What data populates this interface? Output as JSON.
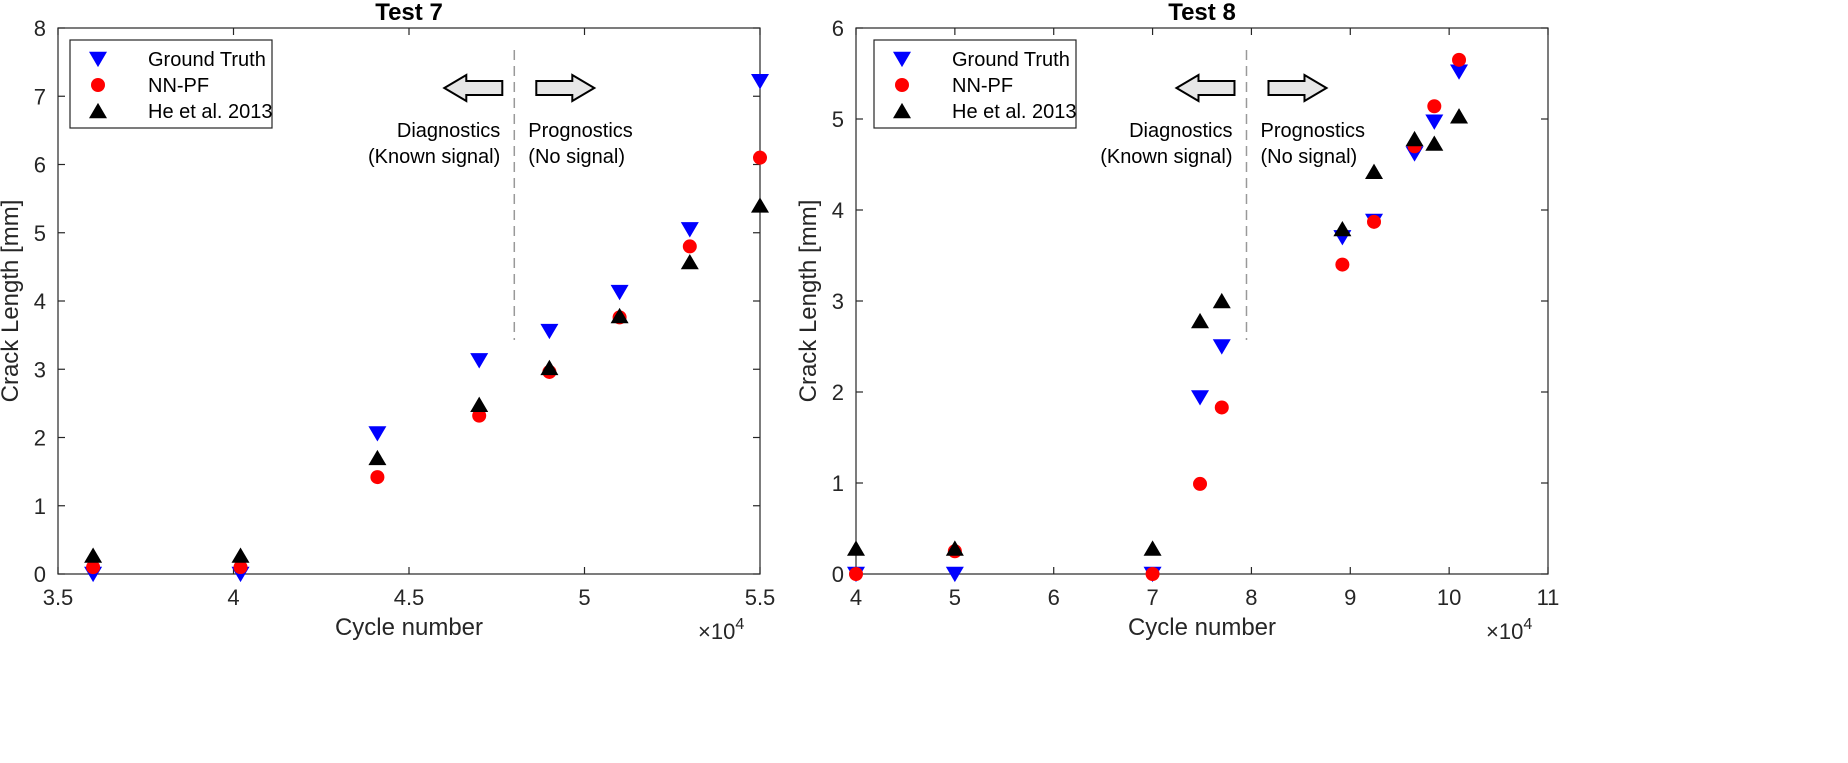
{
  "chart_data": [
    {
      "type": "scatter",
      "title": "Test 7",
      "xlabel": "Cycle number",
      "ylabel": "Crack Length [mm]",
      "x_multiplier": "×10",
      "x_multiplier_exp": "4",
      "xlim": [
        3.5,
        5.5
      ],
      "ylim": [
        0,
        8
      ],
      "xticks": [
        3.5,
        4,
        4.5,
        5,
        5.5
      ],
      "xtick_labels": [
        "3.5",
        "4",
        "4.5",
        "5",
        "5.5"
      ],
      "yticks": [
        0,
        1,
        2,
        3,
        4,
        5,
        6,
        7,
        8
      ],
      "ytick_labels": [
        "0",
        "1",
        "2",
        "3",
        "4",
        "5",
        "6",
        "7",
        "8"
      ],
      "divider_x": 4.8,
      "legend_position": "top-left",
      "annotations": {
        "left_line1": "Diagnostics",
        "left_line2": "(Known signal)",
        "right_line1": "Prognostics",
        "right_line2": "(No signal)"
      },
      "series": [
        {
          "name": "Ground Truth",
          "marker": "triangle-down",
          "color": "#0000ff",
          "x": [
            3.6,
            4.02,
            4.41,
            4.7,
            4.9,
            5.1,
            5.3,
            5.5
          ],
          "y": [
            0.0,
            0.0,
            2.06,
            3.13,
            3.56,
            4.13,
            5.05,
            7.22
          ]
        },
        {
          "name": "NN-PF",
          "marker": "circle",
          "color": "#ff0000",
          "x": [
            3.6,
            4.02,
            4.41,
            4.7,
            4.9,
            5.1,
            5.3,
            5.5
          ],
          "y": [
            0.1,
            0.1,
            1.42,
            2.32,
            2.96,
            3.76,
            4.8,
            6.1
          ]
        },
        {
          "name": "He et al. 2013",
          "marker": "triangle-up",
          "color": "#000000",
          "x": [
            3.6,
            4.02,
            4.41,
            4.7,
            4.9,
            5.1,
            5.3,
            5.5
          ],
          "y": [
            0.27,
            0.27,
            1.7,
            2.48,
            3.02,
            3.78,
            4.57,
            5.4
          ]
        }
      ]
    },
    {
      "type": "scatter",
      "title": "Test 8",
      "xlabel": "Cycle number",
      "ylabel": "Crack Length [mm]",
      "x_multiplier": "×10",
      "x_multiplier_exp": "4",
      "xlim": [
        4,
        11
      ],
      "ylim": [
        0,
        6
      ],
      "xticks": [
        4,
        5,
        6,
        7,
        8,
        9,
        10,
        11
      ],
      "xtick_labels": [
        "4",
        "5",
        "6",
        "7",
        "8",
        "9",
        "10",
        "11"
      ],
      "yticks": [
        0,
        1,
        2,
        3,
        4,
        5,
        6
      ],
      "ytick_labels": [
        "0",
        "1",
        "2",
        "3",
        "4",
        "5",
        "6"
      ],
      "divider_x": 7.95,
      "legend_position": "top-left",
      "annotations": {
        "left_line1": "Diagnostics",
        "left_line2": "(Known signal)",
        "right_line1": "Prognostics",
        "right_line2": "(No signal)"
      },
      "series": [
        {
          "name": "Ground Truth",
          "marker": "triangle-down",
          "color": "#0000ff",
          "x": [
            4.0,
            5.0,
            7.0,
            7.48,
            7.7,
            8.92,
            9.24,
            9.65,
            9.85,
            10.1
          ],
          "y": [
            0.0,
            0.0,
            0.0,
            1.94,
            2.5,
            3.7,
            3.88,
            4.62,
            4.97,
            5.52
          ]
        },
        {
          "name": "NN-PF",
          "marker": "circle",
          "color": "#ff0000",
          "x": [
            4.0,
            5.0,
            7.0,
            7.48,
            7.7,
            8.92,
            9.24,
            9.65,
            9.85,
            10.1
          ],
          "y": [
            0.0,
            0.25,
            0.0,
            0.99,
            1.83,
            3.4,
            3.87,
            4.7,
            5.14,
            5.65
          ]
        },
        {
          "name": "He et al. 2013",
          "marker": "triangle-up",
          "color": "#000000",
          "x": [
            4.0,
            5.0,
            7.0,
            7.48,
            7.7,
            8.92,
            9.24,
            9.65,
            9.85,
            10.1
          ],
          "y": [
            0.28,
            0.28,
            0.28,
            2.78,
            3.0,
            3.79,
            4.42,
            4.78,
            4.73,
            5.03
          ]
        }
      ]
    }
  ]
}
